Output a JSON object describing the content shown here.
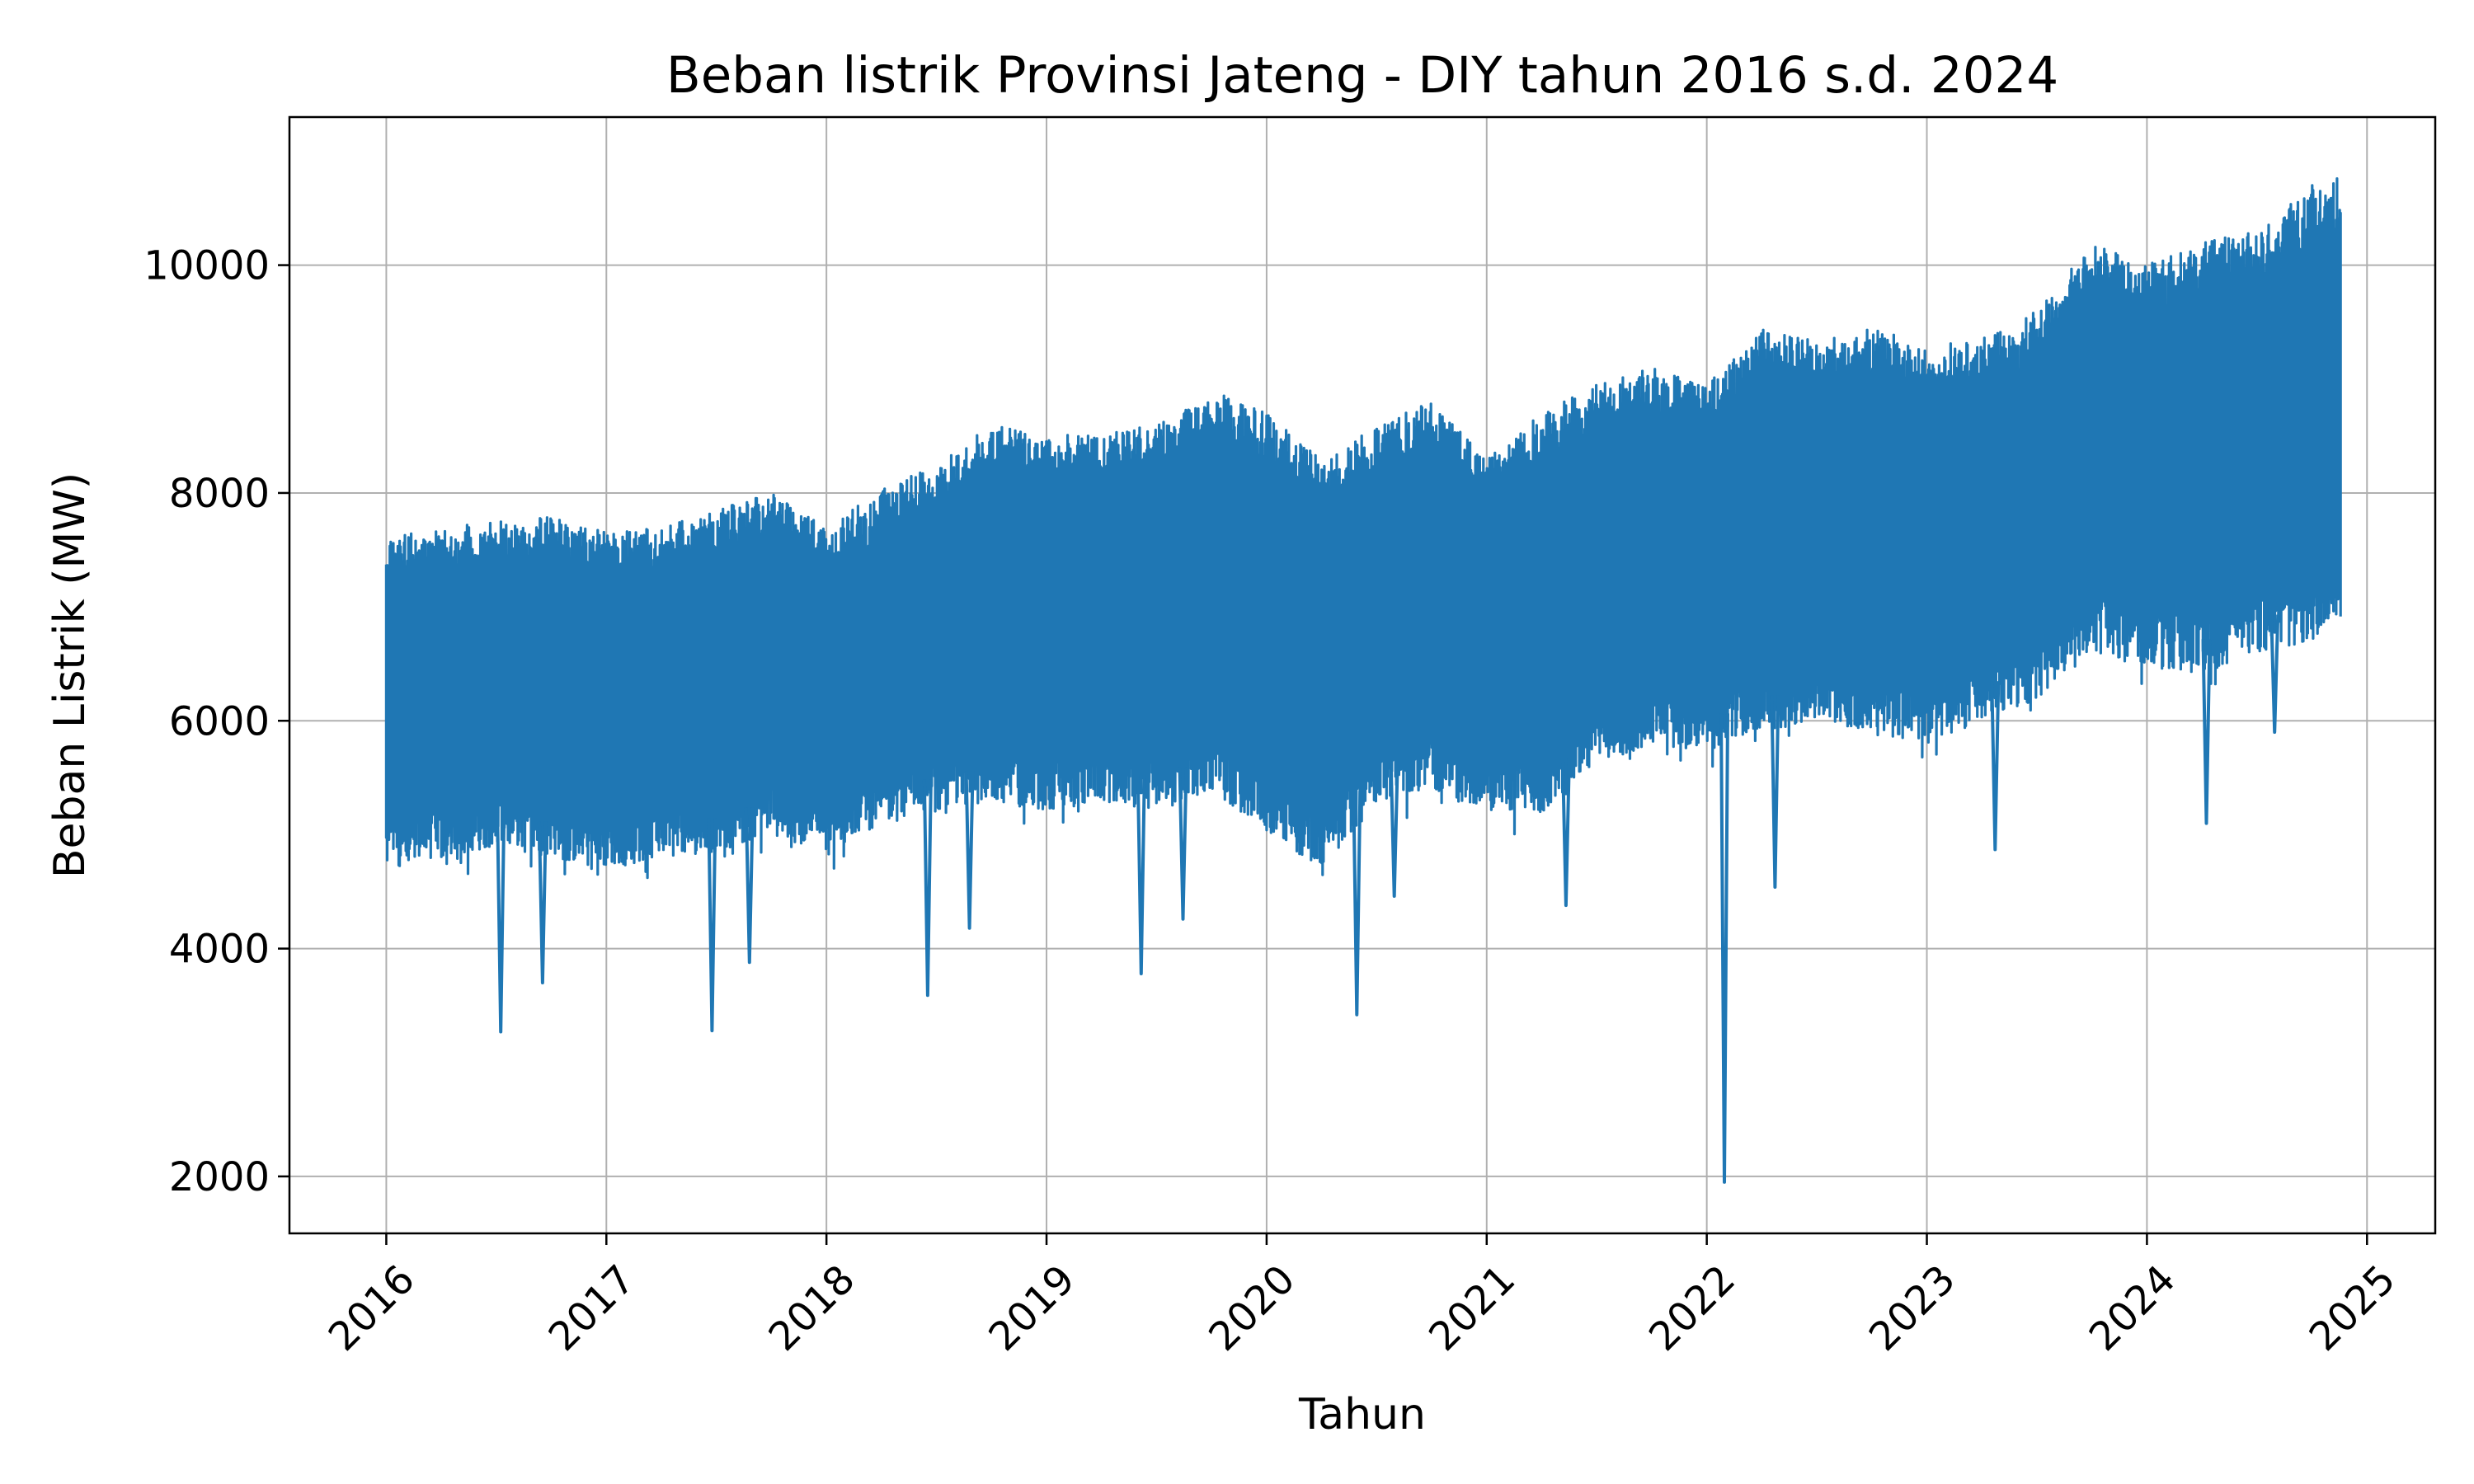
{
  "chart_data": {
    "type": "line",
    "title": "Beban listrik Provinsi Jateng - DIY tahun 2016 s.d. 2024",
    "xlabel": "Tahun",
    "ylabel": "Beban Listrik (MW)",
    "xlim": [
      2015.56,
      2025.31
    ],
    "ylim": [
      1500,
      11300
    ],
    "x_ticks": [
      "2016",
      "2017",
      "2018",
      "2019",
      "2020",
      "2021",
      "2022",
      "2023",
      "2024",
      "2025"
    ],
    "y_ticks": [
      "2000",
      "4000",
      "6000",
      "8000",
      "10000"
    ],
    "grid": true,
    "legend": "none",
    "colors": {
      "line": "#1f77b4",
      "grid": "#b0b0b0",
      "axes": "#000000"
    },
    "series": [
      {
        "x": [
          2016.0,
          2016.25,
          2016.5,
          2016.75,
          2017.0,
          2017.25,
          2017.5,
          2017.75,
          2018.0,
          2018.25,
          2018.5,
          2018.75,
          2019.0,
          2019.25,
          2019.5,
          2019.75,
          2020.0,
          2020.25,
          2020.5,
          2020.75,
          2021.0,
          2021.25,
          2021.5,
          2021.75,
          2022.0,
          2022.25,
          2022.5,
          2022.75,
          2023.0,
          2023.25,
          2023.5,
          2023.75,
          2024.0,
          2024.25,
          2024.5,
          2024.75,
          2024.88
        ],
        "upper": [
          7600,
          7700,
          7750,
          7800,
          7650,
          7700,
          7850,
          8000,
          7700,
          8050,
          8250,
          8600,
          8500,
          8550,
          8600,
          8900,
          8700,
          8300,
          8600,
          8800,
          8300,
          8700,
          8950,
          9100,
          8950,
          9450,
          9350,
          9450,
          9300,
          9350,
          9600,
          10200,
          10000,
          10200,
          10300,
          10700,
          10800
        ],
        "lower": [
          4700,
          4800,
          4900,
          4800,
          4700,
          4800,
          4850,
          5000,
          4850,
          5100,
          5200,
          5300,
          5200,
          5300,
          5200,
          5400,
          5000,
          4700,
          5300,
          5400,
          5200,
          5200,
          5600,
          5800,
          5700,
          5900,
          6000,
          5900,
          5800,
          6000,
          6200,
          6600,
          6500,
          6400,
          6600,
          6700,
          6900
        ],
        "dips": [
          {
            "x": 2016.52,
            "y": 3270
          },
          {
            "x": 2016.71,
            "y": 3700
          },
          {
            "x": 2017.48,
            "y": 3280
          },
          {
            "x": 2017.65,
            "y": 3880
          },
          {
            "x": 2018.46,
            "y": 3590
          },
          {
            "x": 2018.65,
            "y": 4180
          },
          {
            "x": 2019.43,
            "y": 3780
          },
          {
            "x": 2019.62,
            "y": 4260
          },
          {
            "x": 2020.41,
            "y": 3420
          },
          {
            "x": 2020.58,
            "y": 4460
          },
          {
            "x": 2021.36,
            "y": 4380
          },
          {
            "x": 2022.08,
            "y": 1950
          },
          {
            "x": 2022.31,
            "y": 4540
          },
          {
            "x": 2023.31,
            "y": 4870
          },
          {
            "x": 2024.27,
            "y": 5100
          },
          {
            "x": 2024.58,
            "y": 5900
          }
        ]
      }
    ]
  }
}
